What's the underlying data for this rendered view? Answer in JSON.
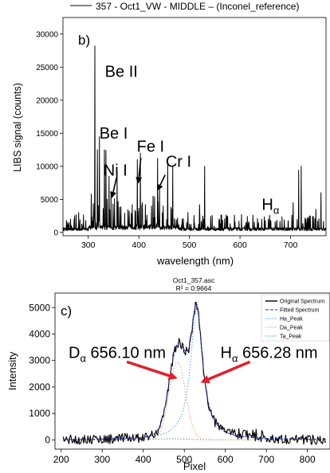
{
  "colors": {
    "spectrum": "#000000",
    "fitted": "#2a2aa8",
    "ha_peak": "#4ba3e6",
    "da_peak": "#f0a060",
    "ta_peak": "#3cb371",
    "arrow": "#e0202a"
  },
  "chart_data": [
    {
      "type": "line",
      "panel_label": "b)",
      "legend": "357 - Oct1_VW - MIDDLE – (Inconel_reference)",
      "xlabel": "wavelength (nm)",
      "ylabel": "LIBS signal (counts)",
      "xlim": [
        250,
        770
      ],
      "ylim": [
        -500,
        32500
      ],
      "xticks": [
        300,
        400,
        500,
        600,
        700
      ],
      "yticks": [
        0,
        5000,
        10000,
        15000,
        20000,
        25000,
        30000
      ],
      "ytick_labels": [
        "0",
        "5000",
        "10000",
        "15000",
        "20000",
        "25000",
        "30000"
      ],
      "baseline": 500,
      "peaks": [
        {
          "x": 262,
          "y": 1500
        },
        {
          "x": 272,
          "y": 1200
        },
        {
          "x": 281,
          "y": 3000
        },
        {
          "x": 295,
          "y": 1800
        },
        {
          "x": 306,
          "y": 5800
        },
        {
          "x": 313,
          "y": 28200
        },
        {
          "x": 318,
          "y": 12500
        },
        {
          "x": 322,
          "y": 14500
        },
        {
          "x": 332,
          "y": 12500
        },
        {
          "x": 335,
          "y": 12400
        },
        {
          "x": 341,
          "y": 8500
        },
        {
          "x": 345,
          "y": 6200
        },
        {
          "x": 349,
          "y": 4300
        },
        {
          "x": 352,
          "y": 5100
        },
        {
          "x": 357,
          "y": 9200
        },
        {
          "x": 362,
          "y": 3800
        },
        {
          "x": 372,
          "y": 2900
        },
        {
          "x": 381,
          "y": 3200
        },
        {
          "x": 387,
          "y": 4200
        },
        {
          "x": 397,
          "y": 11000
        },
        {
          "x": 403,
          "y": 12000
        },
        {
          "x": 407,
          "y": 4500
        },
        {
          "x": 416,
          "y": 2600
        },
        {
          "x": 425,
          "y": 4000
        },
        {
          "x": 428,
          "y": 5500
        },
        {
          "x": 437,
          "y": 11200
        },
        {
          "x": 441,
          "y": 6500
        },
        {
          "x": 448,
          "y": 4000
        },
        {
          "x": 457,
          "y": 10600
        },
        {
          "x": 467,
          "y": 10000
        },
        {
          "x": 488,
          "y": 2100
        },
        {
          "x": 497,
          "y": 3000
        },
        {
          "x": 520,
          "y": 4200
        },
        {
          "x": 530,
          "y": 10000
        },
        {
          "x": 545,
          "y": 1500
        },
        {
          "x": 590,
          "y": 1600
        },
        {
          "x": 616,
          "y": 1200
        },
        {
          "x": 656,
          "y": 2000
        },
        {
          "x": 705,
          "y": 4500
        },
        {
          "x": 716,
          "y": 9400
        },
        {
          "x": 721,
          "y": 10000
        },
        {
          "x": 745,
          "y": 2400
        },
        {
          "x": 750,
          "y": 3500
        },
        {
          "x": 760,
          "y": 6000
        }
      ],
      "annotations": [
        {
          "text": "Be II",
          "x": 333,
          "y": 23500
        },
        {
          "text": "Be I",
          "x": 322,
          "y": 14200
        },
        {
          "text": "Fe I",
          "x": 396,
          "y": 12200
        },
        {
          "text": "Cr I",
          "x": 453,
          "y": 9900
        },
        {
          "text": "Ni I",
          "x": 330,
          "y": 8600
        },
        {
          "text": "H",
          "sub": "α",
          "x": 643,
          "y": 3400
        }
      ],
      "arrows": [
        {
          "from": [
            357,
            8600
          ],
          "to": [
            347,
            5400
          ]
        },
        {
          "from": [
            404,
            11300
          ],
          "to": [
            399,
            7600
          ]
        },
        {
          "from": [
            452,
            8700
          ],
          "to": [
            438,
            6500
          ]
        }
      ]
    },
    {
      "type": "line",
      "panel_label": "c)",
      "title": "Oct1_357.asc",
      "subtitle": "R² = 0.9664",
      "xlabel": "Pixel",
      "ylabel": "Intensity",
      "xlim": [
        185,
        855
      ],
      "ylim": [
        -350,
        5550
      ],
      "xticks": [
        200,
        300,
        400,
        500,
        600,
        700,
        800
      ],
      "yticks": [
        0,
        1000,
        2000,
        3000,
        4000,
        5000
      ],
      "grid": false,
      "legend_placement": "top-right",
      "series": [
        {
          "name": "Original Spectrum",
          "style": "solid",
          "color": "#000000"
        },
        {
          "name": "Fitted Spectrum",
          "style": "dashed",
          "color": "#2a2aa8"
        },
        {
          "name": "Ha_Peak",
          "style": "dotted",
          "color": "#4ba3e6"
        },
        {
          "name": "Da_Peak",
          "style": "dotted",
          "color": "#f0a060"
        },
        {
          "name": "Ta_Peak",
          "style": "dotted",
          "color": "#3cb371"
        }
      ],
      "ha_peak": {
        "center": 530,
        "amplitude": 4950,
        "width": 18
      },
      "da_peak": {
        "center": 483,
        "amplitude": 2950,
        "width": 20
      },
      "ta_peak": {
        "center": 470,
        "amplitude": 40,
        "width": 40
      },
      "annotations": [
        {
          "text": "D",
          "sub": "α",
          "rest": " 656.10 nm",
          "x": 218,
          "y": 3100
        },
        {
          "text": "H",
          "sub": "α",
          "rest": " 656.28 nm",
          "x": 588,
          "y": 3100
        }
      ],
      "arrows": [
        {
          "from": [
            360,
            2950
          ],
          "to": [
            478,
            2350
          ]
        },
        {
          "from": [
            660,
            2950
          ],
          "to": [
            545,
            2200
          ]
        }
      ]
    }
  ]
}
